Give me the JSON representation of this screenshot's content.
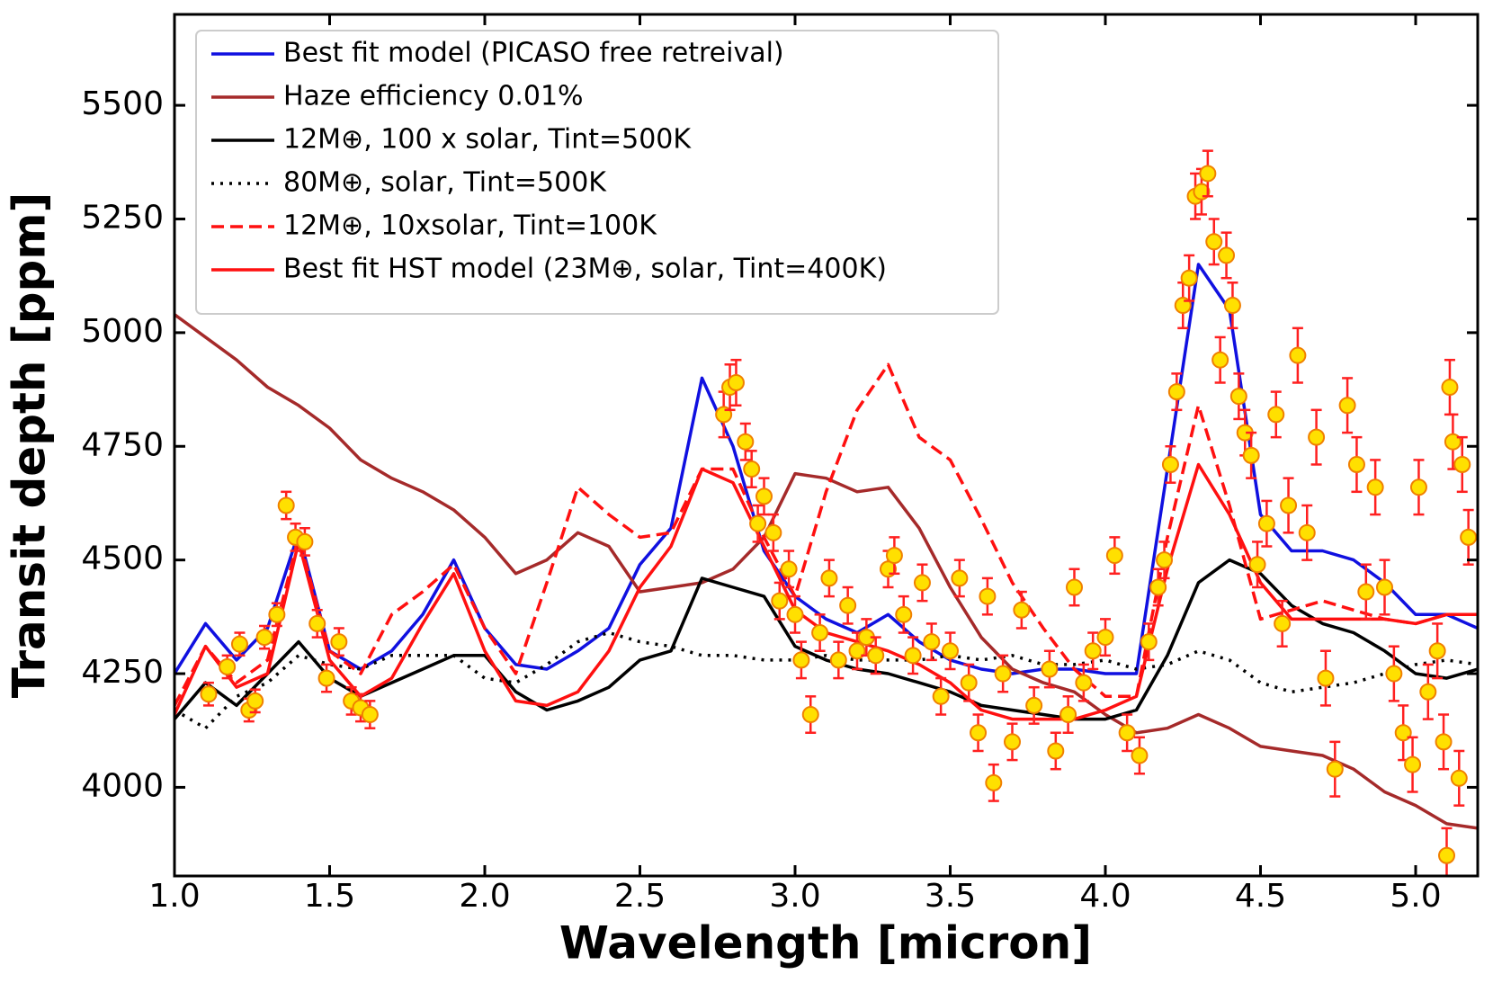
{
  "chart_data": {
    "type": "line",
    "x_label": "Wavelength [micron]",
    "y_label": "Transit depth [ppm]",
    "xlim": [
      1.0,
      5.2
    ],
    "ylim": [
      3805,
      5700
    ],
    "xticks": [
      {
        "value": 1.0,
        "label": "1.0"
      },
      {
        "value": 1.5,
        "label": "1.5"
      },
      {
        "value": 2.0,
        "label": "2.0"
      },
      {
        "value": 2.5,
        "label": "2.5"
      },
      {
        "value": 3.0,
        "label": "3.0"
      },
      {
        "value": 3.5,
        "label": "3.5"
      },
      {
        "value": 4.0,
        "label": "4.0"
      },
      {
        "value": 4.5,
        "label": "4.5"
      },
      {
        "value": 5.0,
        "label": "5.0"
      }
    ],
    "yticks": [
      4000,
      4250,
      4500,
      4750,
      5000,
      5250,
      5500
    ],
    "legend": "upper left",
    "x": [
      1.0,
      1.1,
      1.2,
      1.3,
      1.4,
      1.5,
      1.6,
      1.7,
      1.8,
      1.9,
      2.0,
      2.1,
      2.2,
      2.3,
      2.4,
      2.5,
      2.6,
      2.7,
      2.8,
      2.9,
      3.0,
      3.1,
      3.2,
      3.3,
      3.4,
      3.5,
      3.6,
      3.7,
      3.8,
      3.9,
      4.0,
      4.1,
      4.2,
      4.3,
      4.4,
      4.5,
      4.6,
      4.7,
      4.8,
      4.9,
      5.0,
      5.1,
      5.2
    ],
    "series": [
      {
        "name": "Best fit model (PICASO free retreival)",
        "color": "#1010e0",
        "dash": "solid",
        "values": [
          4250,
          4360,
          4280,
          4350,
          4560,
          4300,
          4260,
          4300,
          4380,
          4500,
          4350,
          4270,
          4260,
          4300,
          4350,
          4490,
          4570,
          4900,
          4750,
          4520,
          4420,
          4370,
          4340,
          4380,
          4320,
          4280,
          4260,
          4250,
          4260,
          4260,
          4250,
          4250,
          4700,
          5150,
          5050,
          4600,
          4520,
          4520,
          4500,
          4450,
          4380,
          4380,
          4350
        ]
      },
      {
        "name": "Haze efficiency 0.01%",
        "color": "#a52a2a",
        "dash": "solid",
        "values": [
          5040,
          4990,
          4940,
          4880,
          4840,
          4790,
          4720,
          4680,
          4650,
          4610,
          4550,
          4470,
          4500,
          4560,
          4530,
          4430,
          4440,
          4450,
          4480,
          4550,
          4690,
          4680,
          4650,
          4660,
          4570,
          4440,
          4330,
          4260,
          4230,
          4210,
          4160,
          4120,
          4130,
          4160,
          4130,
          4090,
          4080,
          4070,
          4040,
          3990,
          3960,
          3920,
          3910
        ]
      },
      {
        "name": "12M⊕, 100 x solar, Tint=500K",
        "color": "#000000",
        "dash": "solid",
        "values": [
          4150,
          4230,
          4180,
          4250,
          4320,
          4240,
          4200,
          4230,
          4260,
          4290,
          4290,
          4210,
          4170,
          4190,
          4220,
          4280,
          4300,
          4460,
          4440,
          4420,
          4310,
          4280,
          4260,
          4250,
          4230,
          4210,
          4180,
          4170,
          4160,
          4150,
          4150,
          4170,
          4290,
          4450,
          4500,
          4470,
          4400,
          4360,
          4340,
          4300,
          4250,
          4240,
          4260
        ]
      },
      {
        "name": "80M⊕, solar, Tint=500K",
        "color": "#000000",
        "dash": "dotted",
        "values": [
          4170,
          4130,
          4200,
          4230,
          4290,
          4270,
          4260,
          4290,
          4290,
          4290,
          4240,
          4230,
          4270,
          4320,
          4340,
          4320,
          4310,
          4290,
          4290,
          4280,
          4280,
          4290,
          4280,
          4280,
          4280,
          4290,
          4280,
          4290,
          4270,
          4270,
          4280,
          4260,
          4270,
          4300,
          4280,
          4230,
          4210,
          4220,
          4230,
          4250,
          4270,
          4280,
          4270
        ]
      },
      {
        "name": "12M⊕, 10xsolar, Tint=100K",
        "color": "#ff1010",
        "dash": "dashed",
        "values": [
          4180,
          4310,
          4230,
          4280,
          4550,
          4300,
          4250,
          4380,
          4430,
          4490,
          4350,
          4250,
          4450,
          4660,
          4600,
          4550,
          4560,
          4700,
          4700,
          4550,
          4420,
          4650,
          4830,
          4930,
          4770,
          4720,
          4590,
          4450,
          4350,
          4260,
          4200,
          4200,
          4550,
          4840,
          4620,
          4370,
          4390,
          4410,
          4390,
          4370,
          4360,
          4380,
          4380
        ]
      },
      {
        "name": "Best fit HST model (23M⊕, solar, Tint=400K)",
        "color": "#ff1010",
        "dash": "solid",
        "values": [
          4160,
          4310,
          4220,
          4250,
          4540,
          4280,
          4200,
          4240,
          4360,
          4470,
          4300,
          4190,
          4180,
          4210,
          4300,
          4440,
          4530,
          4700,
          4670,
          4530,
          4390,
          4340,
          4320,
          4300,
          4270,
          4230,
          4170,
          4150,
          4150,
          4150,
          4170,
          4200,
          4480,
          4710,
          4600,
          4450,
          4370,
          4370,
          4370,
          4370,
          4360,
          4380,
          4380
        ]
      }
    ],
    "data_points": {
      "color": "#ffe000",
      "edge_color": "#f08000",
      "error_color": "#ff2020",
      "x": [
        1.11,
        1.17,
        1.21,
        1.24,
        1.26,
        1.29,
        1.33,
        1.36,
        1.39,
        1.42,
        1.46,
        1.49,
        1.53,
        1.57,
        1.6,
        1.63,
        2.77,
        2.79,
        2.81,
        2.84,
        2.86,
        2.88,
        2.9,
        2.93,
        2.95,
        2.98,
        3.0,
        3.02,
        3.05,
        3.08,
        3.11,
        3.14,
        3.17,
        3.2,
        3.23,
        3.26,
        3.3,
        3.32,
        3.35,
        3.38,
        3.41,
        3.44,
        3.47,
        3.5,
        3.53,
        3.56,
        3.59,
        3.62,
        3.64,
        3.67,
        3.7,
        3.73,
        3.77,
        3.82,
        3.84,
        3.88,
        3.9,
        3.93,
        3.96,
        4.0,
        4.03,
        4.07,
        4.11,
        4.14,
        4.17,
        4.19,
        4.21,
        4.23,
        4.25,
        4.27,
        4.29,
        4.31,
        4.33,
        4.35,
        4.37,
        4.39,
        4.41,
        4.43,
        4.45,
        4.47,
        4.49,
        4.52,
        4.55,
        4.57,
        4.59,
        4.62,
        4.65,
        4.68,
        4.71,
        4.74,
        4.78,
        4.81,
        4.84,
        4.87,
        4.9,
        4.93,
        4.96,
        4.99,
        5.01,
        5.04,
        5.07,
        5.09,
        5.1,
        5.11,
        5.12,
        5.14,
        5.15,
        5.17
      ],
      "values": [
        4205,
        4265,
        4315,
        4170,
        4190,
        4330,
        4380,
        4620,
        4550,
        4540,
        4360,
        4240,
        4320,
        4190,
        4175,
        4160,
        4820,
        4880,
        4890,
        4760,
        4700,
        4580,
        4640,
        4560,
        4410,
        4480,
        4380,
        4280,
        4160,
        4340,
        4460,
        4280,
        4400,
        4300,
        4330,
        4290,
        4480,
        4510,
        4380,
        4290,
        4450,
        4320,
        4200,
        4300,
        4460,
        4230,
        4120,
        4420,
        4010,
        4250,
        4100,
        4390,
        4180,
        4260,
        4080,
        4160,
        4440,
        4230,
        4300,
        4330,
        4510,
        4120,
        4070,
        4320,
        4440,
        4500,
        4710,
        4870,
        5060,
        5120,
        5300,
        5310,
        5350,
        5200,
        4940,
        5170,
        5060,
        4860,
        4780,
        4730,
        4490,
        4580,
        4820,
        4360,
        4620,
        4950,
        4560,
        4770,
        4240,
        4040,
        4840,
        4710,
        4430,
        4660,
        4440,
        4250,
        4120,
        4050,
        4660,
        4210,
        4300,
        4100,
        3850,
        4880,
        4760,
        4020,
        4710,
        4550
      ],
      "errors": [
        25,
        25,
        25,
        25,
        25,
        25,
        25,
        30,
        30,
        30,
        30,
        30,
        30,
        30,
        30,
        30,
        50,
        50,
        50,
        40,
        40,
        40,
        40,
        40,
        40,
        40,
        40,
        40,
        40,
        40,
        40,
        40,
        40,
        40,
        40,
        40,
        40,
        40,
        40,
        40,
        40,
        40,
        40,
        40,
        40,
        40,
        40,
        40,
        40,
        40,
        40,
        40,
        40,
        40,
        40,
        40,
        40,
        40,
        40,
        40,
        40,
        40,
        40,
        40,
        40,
        40,
        40,
        40,
        50,
        50,
        50,
        50,
        50,
        50,
        50,
        50,
        50,
        50,
        50,
        50,
        50,
        50,
        50,
        50,
        60,
        60,
        60,
        60,
        60,
        60,
        60,
        60,
        60,
        60,
        60,
        60,
        60,
        60,
        60,
        60,
        60,
        60,
        60,
        60,
        60,
        60,
        60,
        60
      ]
    }
  }
}
